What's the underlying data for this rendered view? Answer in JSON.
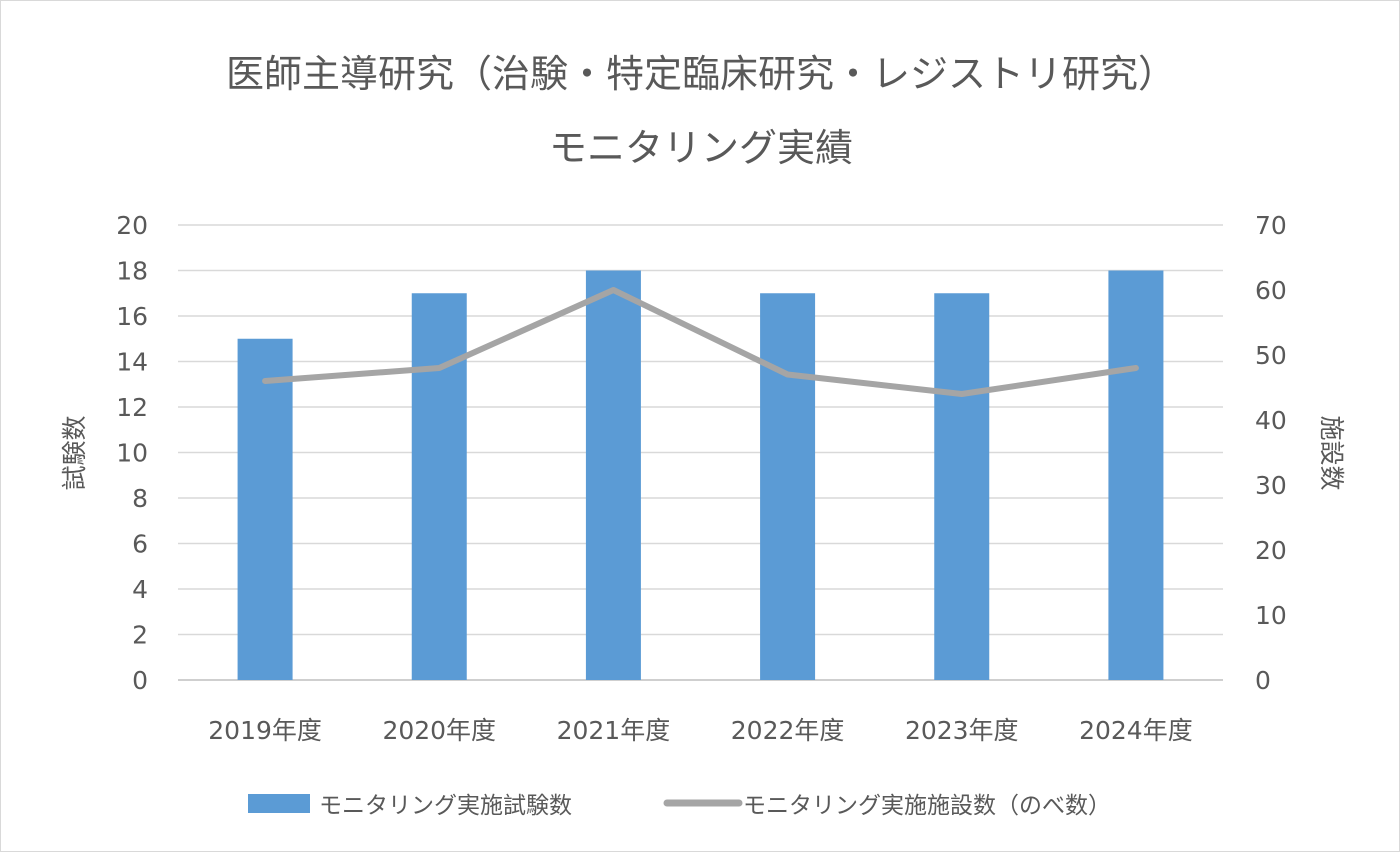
{
  "chart_data": {
    "type": "bar",
    "title_lines": [
      "医師主導研究（治験・特定臨床研究・レジストリ研究）",
      "モニタリング実績"
    ],
    "categories": [
      "2019年度",
      "2020年度",
      "2021年度",
      "2022年度",
      "2023年度",
      "2024年度"
    ],
    "series": [
      {
        "name": "モニタリング実施試験数",
        "type": "bar",
        "axis": "left",
        "color": "#5b9bd5",
        "values": [
          15,
          17,
          18,
          17,
          17,
          18
        ]
      },
      {
        "name": "モニタリング実施施設数（のべ数）",
        "type": "line",
        "axis": "right",
        "color": "#a5a5a5",
        "values": [
          46,
          48,
          60,
          47,
          44,
          48
        ]
      }
    ],
    "y_left": {
      "label": "試験数",
      "min": 0,
      "max": 20,
      "step": 2
    },
    "y_right": {
      "label": "施設数",
      "min": 0,
      "max": 70,
      "step": 10
    },
    "grid": true,
    "legend_position": "bottom",
    "colors": {
      "text": "#595959",
      "grid": "#d9d9d9"
    }
  }
}
